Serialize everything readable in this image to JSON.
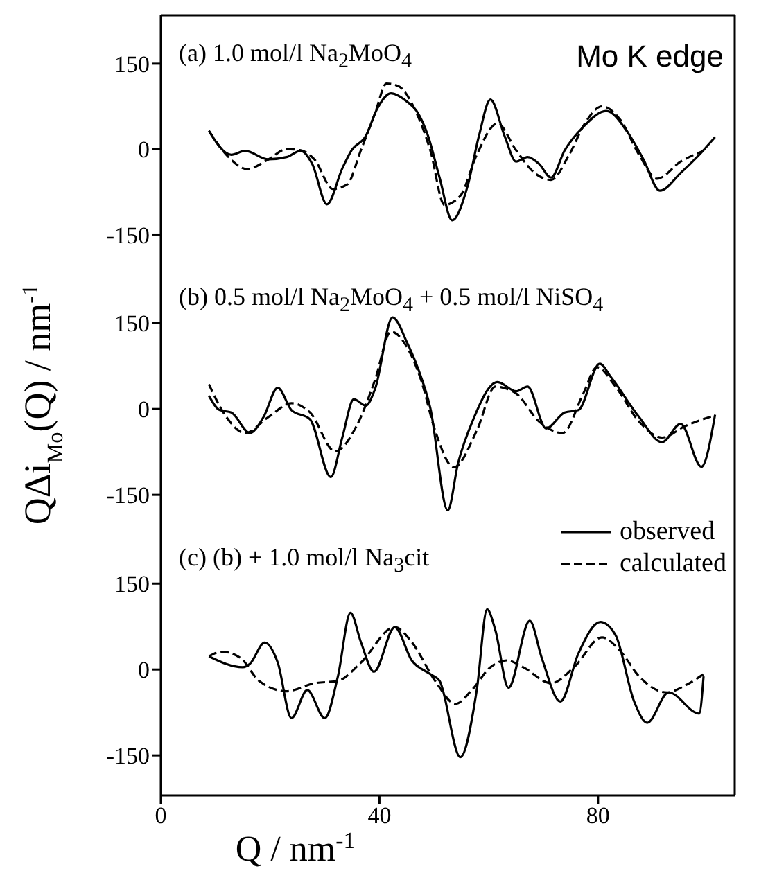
{
  "chart_data": [
    {
      "type": "line",
      "title": "(a) 1.0 mol/l Na$_{2}$MoO$_{4}$",
      "annotations": [
        "Mo K edge"
      ],
      "xlim": [
        0,
        105
      ],
      "xticks": [
        0,
        40,
        80
      ],
      "ylim": [
        -220,
        235
      ],
      "yticks": [
        -150,
        0,
        150
      ],
      "tick_labels": "y",
      "marker": "none",
      "series": [
        {
          "color": "#000000",
          "line_style": "solid",
          "x": [
            8.8,
            12.9,
            15.4,
            19.7,
            23,
            25.6,
            27.7,
            30.4,
            33.2,
            34.9,
            37.5,
            39.6,
            42.1,
            45.1,
            46.8,
            48.9,
            51,
            53.3,
            56.1,
            58.2,
            60.3,
            62.9,
            65,
            67.1,
            69.2,
            71.4,
            73.9,
            77.3,
            81.5,
            85.3,
            88.3,
            91.3,
            95.1,
            98.5,
            101.4
          ],
          "values": [
            32,
            -10,
            -3,
            -18,
            -14,
            -3,
            -26,
            -97,
            -34,
            -2,
            23,
            71,
            98,
            83,
            67,
            23,
            -50,
            -125,
            -66,
            23,
            87,
            23,
            -22,
            -14,
            -26,
            -50,
            -2,
            39,
            67,
            31,
            -18,
            -73,
            -42,
            -10,
            21
          ]
        },
        {
          "color": "#000000",
          "line_style": "dashed",
          "x": [
            8.8,
            12,
            15.8,
            19.7,
            23,
            25.6,
            28.1,
            31.5,
            34.1,
            36.6,
            39.2,
            41.3,
            43.4,
            46.8,
            49.3,
            51.9,
            54.8,
            57.8,
            61.6,
            65,
            68.4,
            71.4,
            74.7,
            77.7,
            80.7,
            84.1,
            87.5,
            90.8,
            95.1,
            99.3
          ],
          "values": [
            32,
            -10,
            -35,
            -18,
            0,
            -2,
            -18,
            -70,
            -62,
            -2,
            63,
            115,
            111,
            63,
            -2,
            -98,
            -82,
            -10,
            45,
            -2,
            -42,
            -54,
            -10,
            47,
            75,
            51,
            -10,
            -52,
            -22,
            -3
          ]
        }
      ]
    },
    {
      "type": "line",
      "title": "(b) 0.5 mol/l Na$_{2}$MoO$_{4}$ + 0.5 mol/l NiSO$_{4}$",
      "ylabel": "QΔi$_{Mo}$(Q) / nm$^{-1}$",
      "xlim": [
        0,
        105
      ],
      "xticks": [
        0,
        40,
        80
      ],
      "ylim": [
        -220,
        235
      ],
      "yticks": [
        -150,
        0,
        150
      ],
      "tick_labels": "y",
      "marker": "none",
      "series": [
        {
          "color": "#000000",
          "line_style": "solid",
          "x": [
            8.8,
            10.8,
            12.9,
            16.3,
            18.8,
            21.4,
            23.9,
            27.3,
            31.1,
            33.2,
            35.3,
            37.5,
            39.2,
            42.4,
            45.1,
            47.2,
            49.3,
            52.5,
            54.4,
            57,
            61.6,
            65,
            67.1,
            70.5,
            73.9,
            76.4,
            80.3,
            82.4,
            87.5,
            91.7,
            95.1,
            98.9,
            101.4
          ],
          "values": [
            23,
            -2,
            -6,
            -42,
            -14,
            37,
            -2,
            -18,
            -119,
            -50,
            17,
            6,
            35,
            160,
            115,
            67,
            2,
            -177,
            -94,
            -22,
            47,
            31,
            39,
            -34,
            -6,
            -2,
            79,
            55,
            -14,
            -58,
            -26,
            -101,
            -10
          ]
        },
        {
          "color": "#000000",
          "line_style": "dashed",
          "x": [
            8.8,
            12,
            15.4,
            19.7,
            23.9,
            27.3,
            31.9,
            35.8,
            39.2,
            42.1,
            45.1,
            47.6,
            50.2,
            53.6,
            57.8,
            61.2,
            65,
            69.2,
            73.5,
            77.3,
            79.8,
            83.2,
            87.5,
            91.7,
            95.9,
            101.4
          ],
          "values": [
            43,
            -14,
            -42,
            -14,
            10,
            -6,
            -74,
            -30,
            51,
            135,
            107,
            51,
            -38,
            -102,
            -38,
            39,
            27,
            -22,
            -42,
            27,
            73,
            39,
            -22,
            -50,
            -30,
            -11
          ]
        }
      ]
    },
    {
      "type": "line",
      "title": "(c) (b) + 1.0 mol/l Na$_{3}$cit",
      "xlabel": "Q / nm$^{-1}$",
      "xlim": [
        0,
        105
      ],
      "xticks": [
        0,
        40,
        80
      ],
      "ylim": [
        -220,
        235
      ],
      "yticks": [
        -150,
        0,
        150
      ],
      "marker": "none",
      "legend": "top right",
      "series": [
        {
          "name": "observed",
          "color": "#000000",
          "line_style": "solid",
          "x": [
            8.8,
            15,
            16.3,
            19,
            21.4,
            23.9,
            26.8,
            30,
            32.4,
            34.7,
            36.6,
            39,
            42.8,
            45.9,
            49.3,
            51,
            54.8,
            57.8,
            59.7,
            61.2,
            63.6,
            67.5,
            69.7,
            73.1,
            76.4,
            80.4,
            83.2,
            86.6,
            89,
            92.9,
            98.5,
            99.3
          ],
          "values": [
            23,
            4,
            10,
            47,
            12,
            -85,
            -36,
            -85,
            -12,
            99,
            48,
            -4,
            74,
            16,
            -8,
            -20,
            -153,
            -36,
            105,
            69,
            -32,
            85,
            20,
            -56,
            28,
            83,
            60,
            -56,
            -93,
            -40,
            -77,
            -12
          ]
        },
        {
          "name": "calculated",
          "color": "#000000",
          "line_style": "dashed",
          "x": [
            8.8,
            11.2,
            14.6,
            18,
            23,
            28.1,
            32.4,
            36.6,
            42.8,
            45.9,
            50.2,
            53.9,
            56.9,
            60.3,
            63.3,
            66.3,
            71.4,
            75.6,
            80.7,
            84.1,
            87.5,
            92.6,
            95.9,
            99.3
          ],
          "values": [
            23,
            31,
            20,
            -20,
            -38,
            -24,
            -20,
            12,
            74,
            48,
            -20,
            -60,
            -36,
            4,
            16,
            4,
            -24,
            4,
            56,
            32,
            -12,
            -40,
            -28,
            -8
          ]
        }
      ]
    }
  ]
}
